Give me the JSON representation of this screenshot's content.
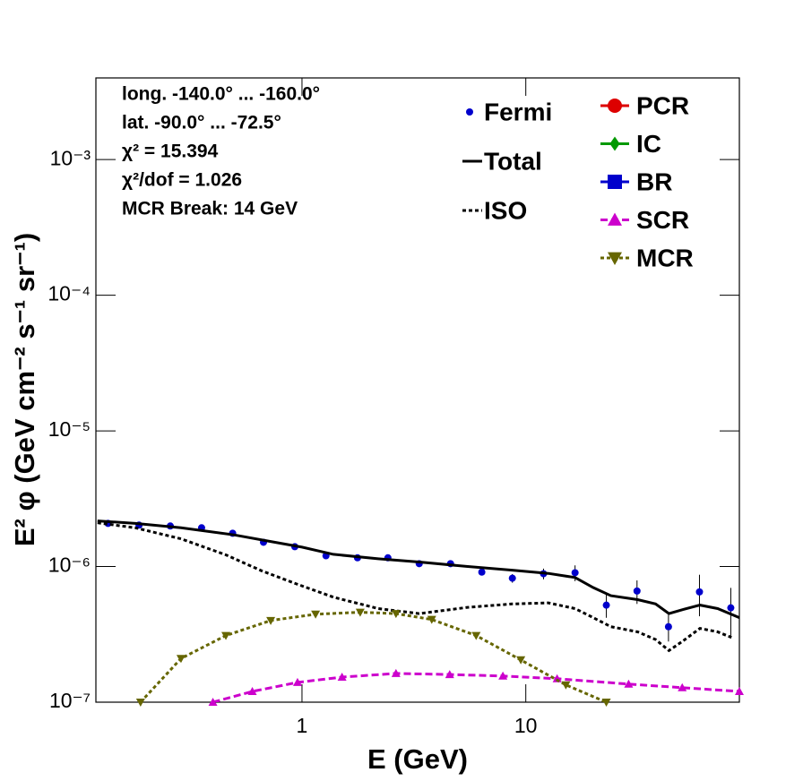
{
  "chart_data": {
    "type": "line",
    "x_label": "E (GeV)",
    "y_label": "E² φ (GeV cm⁻² s⁻¹ sr⁻¹)",
    "annotations": [
      "long. -140.0° ... -160.0°",
      "lat. -90.0° ... -72.5°",
      "χ² = 15.394",
      "χ²/dof = 1.026",
      "MCR Break: 14 GeV"
    ],
    "xscale": "log",
    "yscale": "log",
    "xlim": [
      0.12,
      90
    ],
    "ylim": [
      1e-07,
      0.004
    ],
    "xticks": [
      1,
      10
    ],
    "yticks": [
      {
        "value": 1e-07,
        "label": "10⁻⁷"
      },
      {
        "value": 1e-06,
        "label": "10⁻⁶"
      },
      {
        "value": 1e-05,
        "label": "10⁻⁵"
      },
      {
        "value": 0.0001,
        "label": "10⁻⁴"
      },
      {
        "value": 0.001,
        "label": "10⁻³"
      }
    ],
    "series": [
      {
        "name": "Fermi",
        "color": "#0000cc",
        "marker": "circle",
        "line": "none",
        "x": [
          0.136,
          0.187,
          0.258,
          0.356,
          0.49,
          0.673,
          0.929,
          1.28,
          1.77,
          2.42,
          3.34,
          4.61,
          6.36,
          8.71,
          12.0,
          16.6,
          22.9,
          31.4,
          43.4,
          59.7,
          82.4
        ],
        "values": [
          2.08e-06,
          2.02e-06,
          1.99e-06,
          1.93e-06,
          1.76e-06,
          1.51e-06,
          1.4e-06,
          1.2e-06,
          1.16e-06,
          1.16e-06,
          1.05e-06,
          1.05e-06,
          9.1e-07,
          8.2e-07,
          8.85e-07,
          9e-07,
          5.19e-07,
          6.6e-07,
          3.6e-07,
          6.5e-07,
          4.96e-07
        ],
        "errors": [
          3e-08,
          3e-08,
          3e-08,
          3e-08,
          3e-08,
          3e-08,
          3e-08,
          3e-08,
          3e-08,
          4e-08,
          4e-08,
          5e-08,
          5e-08,
          6e-08,
          8e-08,
          1.2e-07,
          1e-07,
          1.3e-07,
          8e-08,
          2.2e-07,
          2e-07
        ]
      },
      {
        "name": "Total",
        "color": "#000000",
        "marker": "none",
        "line": "solid",
        "x": [
          0.122,
          0.18,
          0.288,
          0.5,
          0.725,
          1,
          1.38,
          2.19,
          3.34,
          5.5,
          8.7,
          12.6,
          16.6,
          20,
          24,
          31.6,
          38,
          43.6,
          50,
          60,
          72,
          90
        ],
        "values": [
          2.17e-06,
          2.08e-06,
          1.93e-06,
          1.71e-06,
          1.53e-06,
          1.39e-06,
          1.23e-06,
          1.14e-06,
          1.08e-06,
          1e-06,
          9.4e-07,
          8.9e-07,
          8.3e-07,
          7e-07,
          6.1e-07,
          5.7e-07,
          5.3e-07,
          4.5e-07,
          4.8e-07,
          5.2e-07,
          4.9e-07,
          4.2e-07
        ]
      },
      {
        "name": "ISO",
        "color": "#000000",
        "marker": "none",
        "line": "dotted",
        "x": [
          0.122,
          0.18,
          0.288,
          0.457,
          0.66,
          0.955,
          1.38,
          2.19,
          3.34,
          5.5,
          8.7,
          12.6,
          16.6,
          20,
          24,
          31.6,
          38,
          43.6,
          50,
          60,
          72,
          83
        ],
        "values": [
          2.1e-06,
          1.93e-06,
          1.6e-06,
          1.22e-06,
          9.3e-07,
          7.4e-07,
          5.95e-07,
          4.9e-07,
          4.5e-07,
          5e-07,
          5.3e-07,
          5.4e-07,
          4.9e-07,
          4.2e-07,
          3.6e-07,
          3.3e-07,
          2.9e-07,
          2.4e-07,
          2.8e-07,
          3.5e-07,
          3.3e-07,
          3e-07
        ]
      },
      {
        "name": "PCR",
        "color": "#dd0000",
        "marker": "circle",
        "line": "solid"
      },
      {
        "name": "IC",
        "color": "#009900",
        "marker": "diamond",
        "line": "solid"
      },
      {
        "name": "BR",
        "color": "#0000cc",
        "marker": "square",
        "line": "solid"
      },
      {
        "name": "SCR",
        "color": "#cc00cc",
        "marker": "triangle-up",
        "line": "dashed",
        "x": [
          0.4,
          0.6,
          0.955,
          1.51,
          2.63,
          4.57,
          7.9,
          13.8,
          28.8,
          50,
          90
        ],
        "values": [
          1e-07,
          1.2e-07,
          1.4e-07,
          1.53e-07,
          1.63e-07,
          1.6e-07,
          1.56e-07,
          1.49e-07,
          1.36e-07,
          1.28e-07,
          1.2e-07
        ]
      },
      {
        "name": "MCR",
        "color": "#666600",
        "marker": "triangle-down",
        "line": "dotted",
        "x": [
          0.19,
          0.288,
          0.457,
          0.725,
          1.15,
          1.82,
          2.63,
          3.8,
          6.0,
          9.5,
          15.1,
          22.9
        ],
        "values": [
          1e-07,
          2.1e-07,
          3.1e-07,
          4e-07,
          4.45e-07,
          4.6e-07,
          4.5e-07,
          4.07e-07,
          3.1e-07,
          2.05e-07,
          1.34e-07,
          1e-07
        ]
      }
    ]
  }
}
